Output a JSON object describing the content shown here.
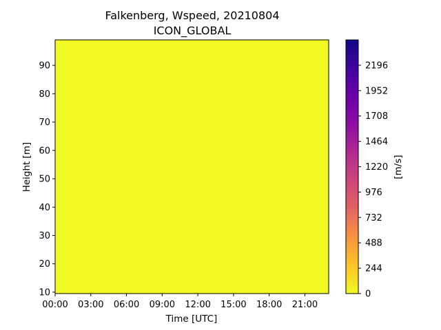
{
  "chart_data": {
    "type": "heatmap",
    "title": [
      "Falkenberg, Wspeed, 20210804",
      "ICON_GLOBAL"
    ],
    "xlabel": "Time [UTC]",
    "ylabel": "Height [m]",
    "x_tick_labels": [
      "00:00",
      "03:00",
      "06:00",
      "09:00",
      "12:00",
      "15:00",
      "18:00",
      "21:00"
    ],
    "x_tick_hours": [
      0,
      3,
      6,
      9,
      12,
      15,
      18,
      21
    ],
    "xlim_hours": [
      0,
      23
    ],
    "y_ticks": [
      10,
      20,
      30,
      40,
      50,
      60,
      70,
      80,
      90
    ],
    "ylim": [
      9.5,
      99
    ],
    "field_value_ms": 0,
    "field_color": "#f0f921",
    "colorbar": {
      "label": "[m/s]",
      "ticks": [
        0,
        244,
        488,
        732,
        976,
        1220,
        1464,
        1708,
        1952,
        2196
      ],
      "range": [
        0,
        2440
      ],
      "colormap": "plasma_r",
      "colors": [
        "#f0f921",
        "#fdc527",
        "#f89540",
        "#e16462",
        "#cc4778",
        "#b12a90",
        "#8f0da4",
        "#6a00a8",
        "#41049d",
        "#0d0887"
      ]
    }
  }
}
